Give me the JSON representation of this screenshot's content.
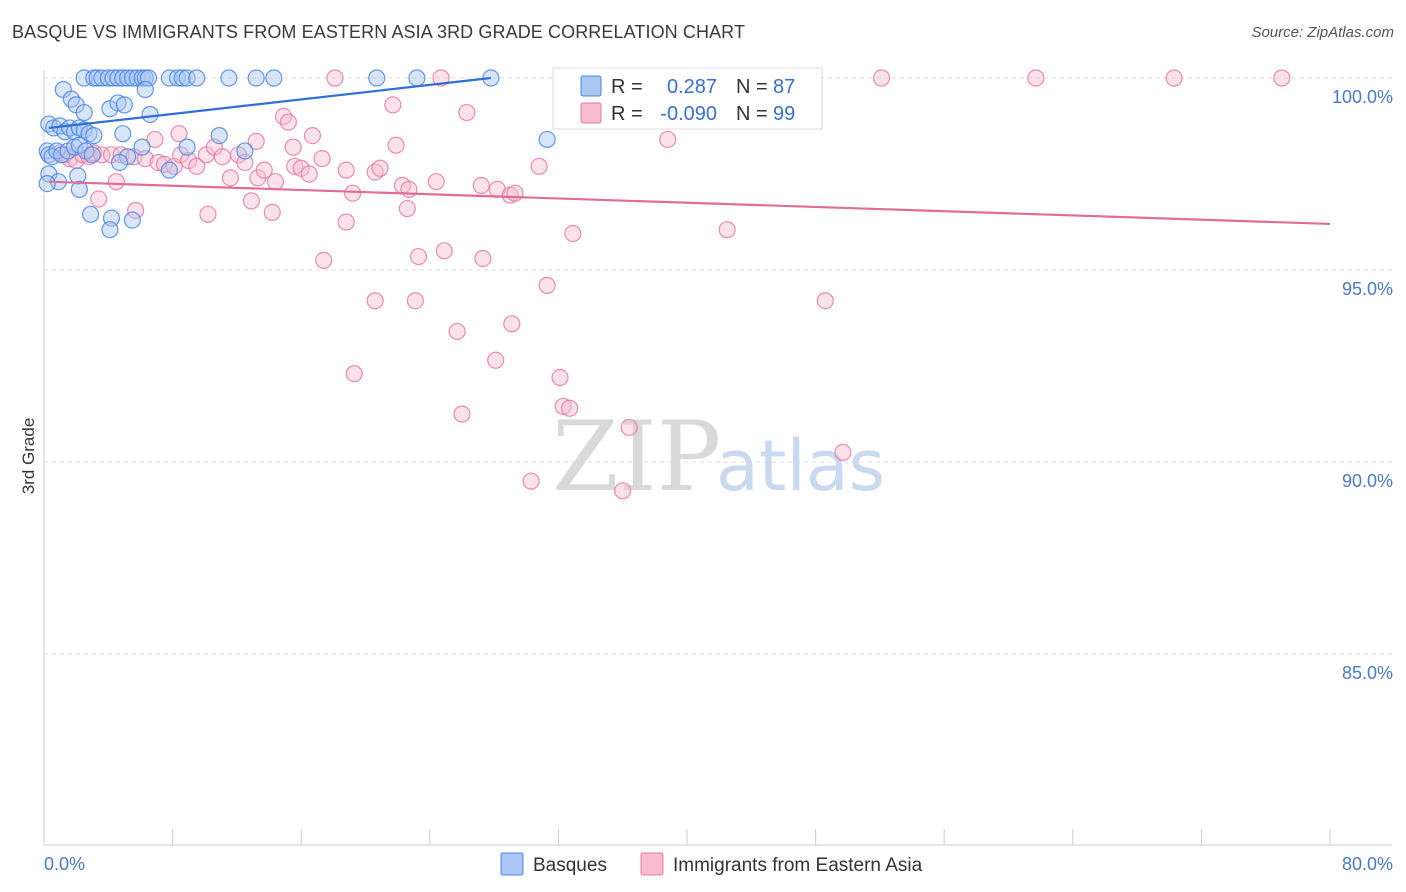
{
  "header": {
    "title": "BASQUE VS IMMIGRANTS FROM EASTERN ASIA 3RD GRADE CORRELATION CHART",
    "source": "Source: ZipAtlas.com"
  },
  "watermark": {
    "zip": "ZIP",
    "atlas": "atlas"
  },
  "colors": {
    "blue": "#4a86e8",
    "blue_fill": "#a9c6f0",
    "blue_line": "#2f6fd6",
    "pink": "#e87aa0",
    "pink_fill": "#f6bcd0",
    "pink_line": "#e06c98",
    "axis_text": "#4a78c6"
  },
  "legend": {
    "rows": [
      {
        "r_label": "R =",
        "r_value": "0.287",
        "n_label": "N =",
        "n_value": "87"
      },
      {
        "r_label": "R =",
        "r_value": "-0.090",
        "n_label": "N =",
        "n_value": "99"
      }
    ]
  },
  "chart_data": {
    "type": "scatter",
    "ylabel": "3rd Grade",
    "xlim": [
      0,
      80
    ],
    "ylim": [
      80.5,
      100.6
    ],
    "x_tick_labels": [
      "0.0%",
      "80.0%"
    ],
    "y_ticks": [
      {
        "value": 100,
        "label": "100.0%"
      },
      {
        "value": 95,
        "label": "95.0%"
      },
      {
        "value": 90,
        "label": "90.0%"
      },
      {
        "value": 85,
        "label": "85.0%"
      }
    ],
    "grid": "horizontal dashed",
    "series": [
      {
        "name": "Basques",
        "color": "blue",
        "trend": {
          "x": [
            0.3,
            27.8
          ],
          "y": [
            98.7,
            100.0
          ]
        },
        "points": [
          [
            2.5,
            100
          ],
          [
            3.1,
            100
          ],
          [
            3.3,
            100
          ],
          [
            3.6,
            100
          ],
          [
            4.0,
            100
          ],
          [
            4.3,
            100
          ],
          [
            4.6,
            100
          ],
          [
            4.9,
            100
          ],
          [
            5.2,
            100
          ],
          [
            5.5,
            100
          ],
          [
            5.8,
            100
          ],
          [
            6.1,
            100
          ],
          [
            6.3,
            100
          ],
          [
            6.5,
            100
          ],
          [
            7.8,
            100
          ],
          [
            8.3,
            100
          ],
          [
            8.6,
            100
          ],
          [
            8.9,
            100
          ],
          [
            9.5,
            100
          ],
          [
            11.5,
            100
          ],
          [
            13.2,
            100
          ],
          [
            14.3,
            100
          ],
          [
            20.7,
            100
          ],
          [
            23.2,
            100
          ],
          [
            27.8,
            100
          ],
          [
            1.2,
            99.7
          ],
          [
            1.7,
            99.45
          ],
          [
            2.0,
            99.3
          ],
          [
            2.5,
            99.1
          ],
          [
            4.1,
            99.2
          ],
          [
            4.6,
            99.35
          ],
          [
            5.0,
            99.3
          ],
          [
            6.3,
            99.7
          ],
          [
            6.6,
            99.05
          ],
          [
            0.3,
            98.8
          ],
          [
            0.6,
            98.7
          ],
          [
            1.0,
            98.75
          ],
          [
            1.3,
            98.6
          ],
          [
            1.6,
            98.7
          ],
          [
            1.9,
            98.6
          ],
          [
            2.2,
            98.7
          ],
          [
            2.5,
            98.65
          ],
          [
            2.8,
            98.55
          ],
          [
            3.1,
            98.5
          ],
          [
            4.9,
            98.55
          ],
          [
            10.9,
            98.5
          ],
          [
            31.3,
            98.4
          ],
          [
            0.2,
            98.1
          ],
          [
            0.3,
            98.0
          ],
          [
            0.5,
            97.95
          ],
          [
            0.8,
            98.1
          ],
          [
            1.1,
            98.0
          ],
          [
            1.5,
            98.1
          ],
          [
            1.9,
            98.2
          ],
          [
            2.2,
            98.25
          ],
          [
            2.6,
            98.1
          ],
          [
            3.0,
            98.0
          ],
          [
            5.2,
            97.95
          ],
          [
            6.1,
            98.2
          ],
          [
            8.9,
            98.2
          ],
          [
            12.5,
            98.1
          ],
          [
            0.3,
            97.5
          ],
          [
            0.9,
            97.3
          ],
          [
            2.1,
            97.45
          ],
          [
            2.2,
            97.1
          ],
          [
            4.7,
            97.8
          ],
          [
            7.8,
            97.6
          ],
          [
            0.2,
            97.25
          ],
          [
            2.9,
            96.45
          ],
          [
            4.2,
            96.35
          ],
          [
            4.1,
            96.05
          ],
          [
            5.5,
            96.3
          ]
        ]
      },
      {
        "name": "Immigrants from Eastern Asia",
        "color": "pink",
        "trend": {
          "x": [
            0.3,
            80.0
          ],
          "y": [
            97.3,
            96.2
          ]
        },
        "points": [
          [
            18.1,
            100
          ],
          [
            24.7,
            100
          ],
          [
            34.7,
            100
          ],
          [
            37.4,
            100
          ],
          [
            39.7,
            100
          ],
          [
            43.4,
            100
          ],
          [
            52.1,
            100
          ],
          [
            61.7,
            100
          ],
          [
            70.3,
            100
          ],
          [
            77.0,
            100
          ],
          [
            21.7,
            99.3
          ],
          [
            26.3,
            99.1
          ],
          [
            14.9,
            99.0
          ],
          [
            15.2,
            98.85
          ],
          [
            8.4,
            98.55
          ],
          [
            16.7,
            98.5
          ],
          [
            6.9,
            98.4
          ],
          [
            13.2,
            98.35
          ],
          [
            15.5,
            98.2
          ],
          [
            21.9,
            98.25
          ],
          [
            38.8,
            98.4
          ],
          [
            1.0,
            98.05
          ],
          [
            1.3,
            98.0
          ],
          [
            1.6,
            97.9
          ],
          [
            2.0,
            97.85
          ],
          [
            2.4,
            98.0
          ],
          [
            2.8,
            97.95
          ],
          [
            3.1,
            98.05
          ],
          [
            3.6,
            98.0
          ],
          [
            4.2,
            98.0
          ],
          [
            4.8,
            98.0
          ],
          [
            5.6,
            97.95
          ],
          [
            6.3,
            97.9
          ],
          [
            7.1,
            97.8
          ],
          [
            7.5,
            97.75
          ],
          [
            8.1,
            97.7
          ],
          [
            8.5,
            98.0
          ],
          [
            9.0,
            97.85
          ],
          [
            9.5,
            97.7
          ],
          [
            10.1,
            98.0
          ],
          [
            10.6,
            98.2
          ],
          [
            11.1,
            97.95
          ],
          [
            11.6,
            97.4
          ],
          [
            12.1,
            98.0
          ],
          [
            12.5,
            97.8
          ],
          [
            13.3,
            97.4
          ],
          [
            13.7,
            97.6
          ],
          [
            14.4,
            97.3
          ],
          [
            15.6,
            97.7
          ],
          [
            16.0,
            97.65
          ],
          [
            16.5,
            97.5
          ],
          [
            17.3,
            97.9
          ],
          [
            18.8,
            97.6
          ],
          [
            19.2,
            97.0
          ],
          [
            20.6,
            97.55
          ],
          [
            20.9,
            97.65
          ],
          [
            22.3,
            97.2
          ],
          [
            22.7,
            97.1
          ],
          [
            24.4,
            97.3
          ],
          [
            27.2,
            97.2
          ],
          [
            28.2,
            97.1
          ],
          [
            29.0,
            96.95
          ],
          [
            29.3,
            97.0
          ],
          [
            30.8,
            97.7
          ],
          [
            4.5,
            97.3
          ],
          [
            3.4,
            96.85
          ],
          [
            5.7,
            96.55
          ],
          [
            10.2,
            96.45
          ],
          [
            12.9,
            96.8
          ],
          [
            14.2,
            96.5
          ],
          [
            18.8,
            96.25
          ],
          [
            22.6,
            96.6
          ],
          [
            32.9,
            95.95
          ],
          [
            42.5,
            96.05
          ],
          [
            17.4,
            95.25
          ],
          [
            23.3,
            95.35
          ],
          [
            24.9,
            95.5
          ],
          [
            27.3,
            95.3
          ],
          [
            31.3,
            94.6
          ],
          [
            20.6,
            94.2
          ],
          [
            23.1,
            94.2
          ],
          [
            48.6,
            94.2
          ],
          [
            25.7,
            93.4
          ],
          [
            29.1,
            93.6
          ],
          [
            28.1,
            92.65
          ],
          [
            19.3,
            92.3
          ],
          [
            32.1,
            92.2
          ],
          [
            32.3,
            91.45
          ],
          [
            32.7,
            91.4
          ],
          [
            26.0,
            91.25
          ],
          [
            36.4,
            90.9
          ],
          [
            49.7,
            90.25
          ],
          [
            30.3,
            89.5
          ],
          [
            36.0,
            89.25
          ]
        ]
      }
    ]
  },
  "bottom_legend": [
    {
      "label": "Basques",
      "color": "blue"
    },
    {
      "label": "Immigrants from Eastern Asia",
      "color": "pink"
    }
  ]
}
